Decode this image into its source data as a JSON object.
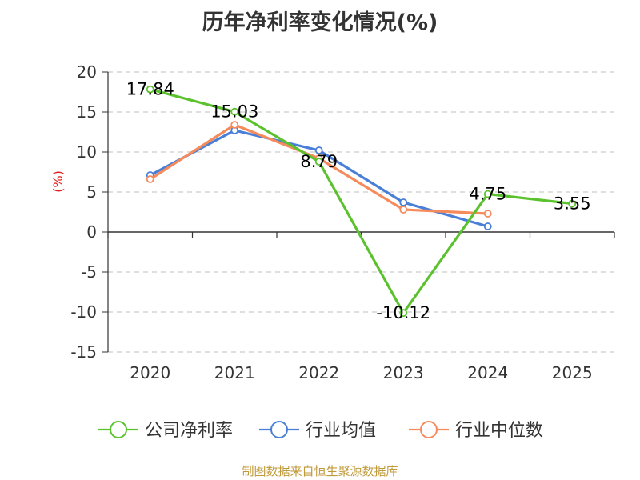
{
  "title": "历年净利率变化情况(%)",
  "source": "制图数据来自恒生聚源数据库",
  "chart_data": {
    "type": "line",
    "title": "历年净利率变化情况(%)",
    "ylabel": "(%)",
    "xlabel": "",
    "categories": [
      "2020",
      "2021",
      "2022",
      "2023",
      "2024",
      "2025"
    ],
    "ylim": [
      -15,
      20
    ],
    "yticks": [
      -15,
      -10,
      -5,
      0,
      5,
      10,
      15,
      20
    ],
    "grid": "horizontal dashed",
    "legend_position": "bottom",
    "series": [
      {
        "name": "公司净利率",
        "color": "#5bc22e",
        "values": [
          17.84,
          15.03,
          8.79,
          -10.12,
          4.75,
          3.55
        ],
        "labels": [
          "17.84",
          "15.03",
          "8.79",
          "-10.12",
          "4.75",
          "3.55"
        ]
      },
      {
        "name": "行业均值",
        "color": "#4a7fd8",
        "values": [
          7.1,
          12.7,
          10.2,
          3.7,
          0.7,
          null
        ]
      },
      {
        "name": "行业中位数",
        "color": "#f58a5a",
        "values": [
          6.6,
          13.4,
          9.2,
          2.8,
          2.3,
          null
        ]
      }
    ]
  }
}
